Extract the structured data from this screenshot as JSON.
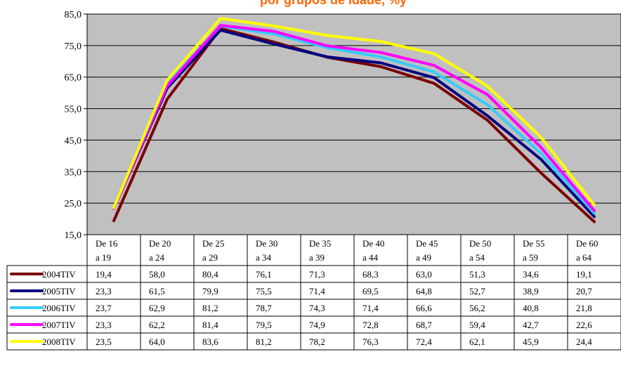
{
  "chart_data": {
    "type": "line",
    "title": "por grupos de idade, %y",
    "categories": [
      [
        "De 16",
        "a 19"
      ],
      [
        "De 20",
        "a 24"
      ],
      [
        "De 25",
        "a 29"
      ],
      [
        "De 30",
        "a 34"
      ],
      [
        "De 35",
        "a 39"
      ],
      [
        "De 40",
        "a 44"
      ],
      [
        "De 45",
        "a 49"
      ],
      [
        "De 50",
        "a 54"
      ],
      [
        "De 55",
        "a 59"
      ],
      [
        "De 60",
        "a 64"
      ]
    ],
    "ylim": [
      15.0,
      85.0
    ],
    "yticks": [
      "15,0",
      "25,0",
      "35,0",
      "45,0",
      "55,0",
      "65,0",
      "75,0",
      "85,0"
    ],
    "ytick_values": [
      15,
      25,
      35,
      45,
      55,
      65,
      75,
      85
    ],
    "grid": true,
    "legend": "table-left",
    "plot_background": "#c0c0c0",
    "series": [
      {
        "name": "2004TIV",
        "color": "#7a0000",
        "values": [
          19.4,
          58.0,
          80.4,
          76.1,
          71.3,
          68.3,
          63.0,
          51.3,
          34.6,
          19.1
        ],
        "labels": [
          "19,4",
          "58,0",
          "80,4",
          "76,1",
          "71,3",
          "68,3",
          "63,0",
          "51,3",
          "34,6",
          "19,1"
        ]
      },
      {
        "name": "2005TIV",
        "color": "#000080",
        "values": [
          23.3,
          61.5,
          79.9,
          75.5,
          71.4,
          69.5,
          64.8,
          52.7,
          38.9,
          20.7
        ],
        "labels": [
          "23,3",
          "61,5",
          "79,9",
          "75,5",
          "71,4",
          "69,5",
          "64,8",
          "52,7",
          "38,9",
          "20,7"
        ]
      },
      {
        "name": "2006TIV",
        "color": "#33ccff",
        "values": [
          23.7,
          62.9,
          81.2,
          78.7,
          74.3,
          71.4,
          66.6,
          56.2,
          40.8,
          21.8
        ],
        "labels": [
          "23,7",
          "62,9",
          "81,2",
          "78,7",
          "74,3",
          "71,4",
          "66,6",
          "56,2",
          "40,8",
          "21,8"
        ]
      },
      {
        "name": "2007TIV",
        "color": "#ff00ff",
        "values": [
          23.3,
          62.2,
          81.4,
          79.5,
          74.9,
          72.8,
          68.7,
          59.4,
          42.7,
          22.6
        ],
        "labels": [
          "23,3",
          "62,2",
          "81,4",
          "79,5",
          "74,9",
          "72,8",
          "68,7",
          "59,4",
          "42,7",
          "22,6"
        ]
      },
      {
        "name": "2008TIV",
        "color": "#ffff00",
        "values": [
          23.5,
          64.0,
          83.6,
          81.2,
          78.2,
          76.3,
          72.4,
          62.1,
          45.9,
          24.4
        ],
        "labels": [
          "23,5",
          "64,0",
          "83,6",
          "81,2",
          "78,2",
          "76,3",
          "72,4",
          "62,1",
          "45,9",
          "24,4"
        ]
      }
    ]
  }
}
